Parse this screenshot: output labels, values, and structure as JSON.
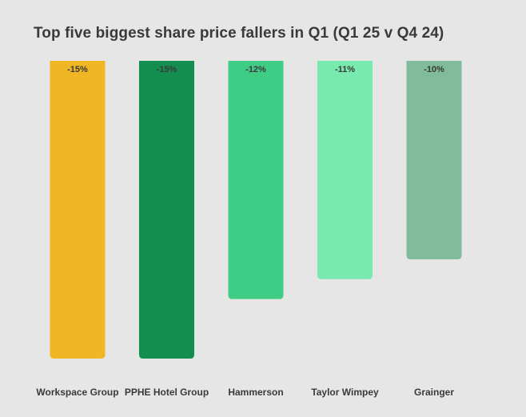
{
  "chart_data": {
    "type": "bar",
    "title": "Top five biggest share price fallers in Q1 (Q1 25 v Q4 24)",
    "categories": [
      "Workspace Group",
      "PPHE Hotel Group",
      "Hammerson",
      "Taylor Wimpey",
      "Grainger"
    ],
    "values": [
      -15,
      -15,
      -12,
      -11,
      -10
    ],
    "data_labels": [
      "-15%",
      "-15%",
      "-12%",
      "-11%",
      "-10%"
    ],
    "colors": [
      "#f0b623",
      "#138e4e",
      "#3fcc84",
      "#78eaad",
      "#80bc9b"
    ],
    "ylim": [
      -15,
      0
    ],
    "grid": false,
    "legend": "none"
  }
}
